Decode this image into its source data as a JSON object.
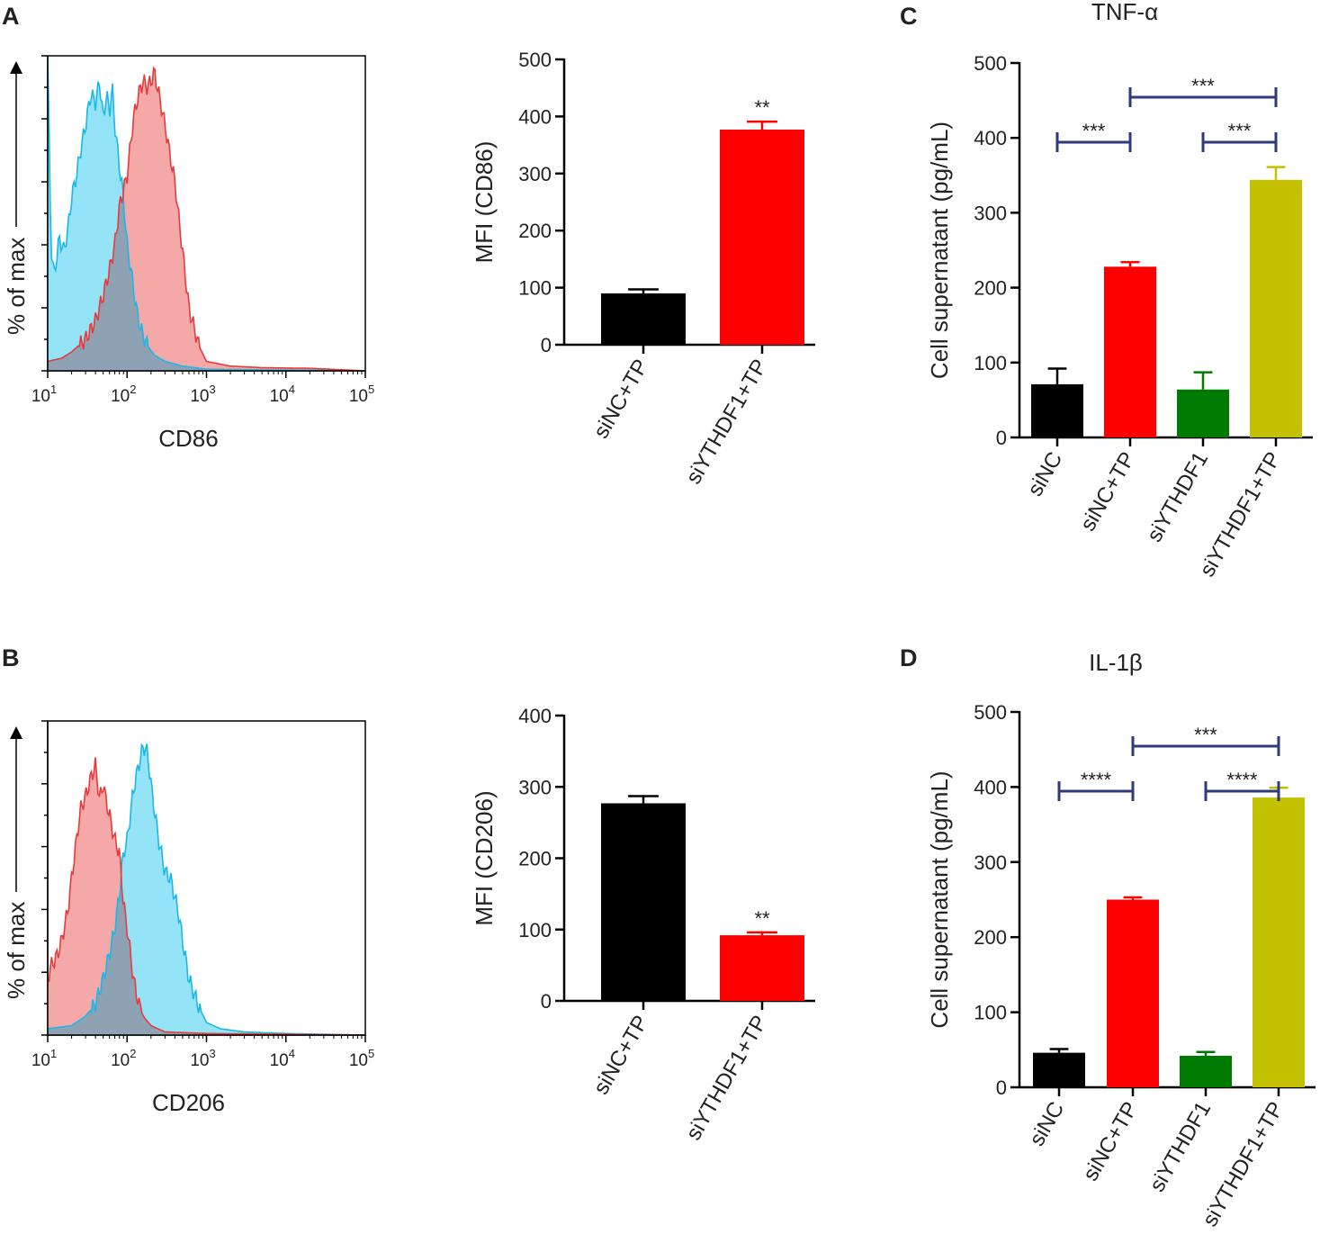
{
  "panels": {
    "A": "A",
    "B": "B",
    "C": "C",
    "D": "D"
  },
  "colors": {
    "black": "#000000",
    "red": "#ff0000",
    "green": "#007a00",
    "olive": "#c3c000",
    "bracket": "#2e3a7a",
    "hist_blue_fill": "#8fe1f5",
    "hist_blue_line": "#1ab8e8",
    "hist_red_fill": "#f4a3a3",
    "hist_red_line": "#e63b3b",
    "hist_overlap": "#8fa2b4"
  },
  "chart_data": [
    {
      "id": "hist_cd86",
      "panel": "A",
      "type": "area",
      "xlabel": "CD86",
      "ylabel": "% of max",
      "xscale": "log",
      "xlim": [
        10,
        100000
      ],
      "x_ticks": [
        {
          "base": "10",
          "exp": "1"
        },
        {
          "base": "10",
          "exp": "2"
        },
        {
          "base": "10",
          "exp": "3"
        },
        {
          "base": "10",
          "exp": "4"
        },
        {
          "base": "10",
          "exp": "5"
        }
      ],
      "series": [
        {
          "name": "siNC+TP",
          "color": "blue",
          "x": [
            10,
            11,
            12,
            14,
            16,
            18,
            20,
            23,
            26,
            30,
            35,
            40,
            45,
            50,
            55,
            60,
            65,
            70,
            80,
            90,
            100,
            115,
            130,
            150,
            180,
            220,
            300,
            500,
            1000,
            100000
          ],
          "y": [
            100,
            40,
            30,
            42,
            38,
            45,
            55,
            62,
            70,
            78,
            88,
            85,
            92,
            80,
            88,
            82,
            90,
            78,
            65,
            55,
            40,
            30,
            20,
            13,
            8,
            5,
            3,
            1.5,
            0.5,
            0
          ]
        },
        {
          "name": "siYTHDF1+TP",
          "color": "red",
          "x": [
            10,
            15,
            20,
            30,
            40,
            50,
            60,
            70,
            80,
            100,
            120,
            140,
            160,
            180,
            200,
            220,
            250,
            280,
            300,
            350,
            400,
            450,
            500,
            600,
            800,
            1000,
            2000,
            5000,
            20000,
            100000
          ],
          "y": [
            3,
            4,
            6,
            10,
            16,
            24,
            32,
            40,
            52,
            62,
            80,
            88,
            92,
            90,
            92,
            95,
            88,
            82,
            78,
            68,
            60,
            48,
            38,
            20,
            8,
            3,
            1.5,
            1,
            0.8,
            0
          ]
        }
      ]
    },
    {
      "id": "bar_cd86",
      "panel": "A",
      "type": "bar",
      "ylabel": "MFI (CD86)",
      "ylim": [
        0,
        500
      ],
      "yticks": [
        0,
        100,
        200,
        300,
        400,
        500
      ],
      "categories": [
        "siNC+TP",
        "siYTHDF1+TP"
      ],
      "values": [
        90,
        377
      ],
      "errors": [
        7,
        14
      ],
      "colors": [
        "black",
        "red"
      ],
      "annotations": [
        {
          "index": 1,
          "text": "**"
        }
      ]
    },
    {
      "id": "tnf",
      "panel": "C",
      "type": "bar",
      "title": "TNF-α",
      "ylabel": "Cell supernatant  (pg/mL)",
      "ylim": [
        0,
        500
      ],
      "yticks": [
        0,
        100,
        200,
        300,
        400,
        500
      ],
      "categories": [
        "siNC",
        "siNC+TP",
        "siYTHDF1",
        "siYTHDF1+TP"
      ],
      "values": [
        71,
        228,
        64,
        344
      ],
      "errors": [
        21,
        6,
        23,
        17
      ],
      "colors": [
        "black",
        "red",
        "green",
        "olive"
      ],
      "comparisons": [
        {
          "from": 0,
          "to": 1,
          "text": "***",
          "level": 1
        },
        {
          "from": 2,
          "to": 3,
          "text": "***",
          "level": 1
        },
        {
          "from": 1,
          "to": 3,
          "text": "***",
          "level": 2
        }
      ]
    },
    {
      "id": "hist_cd206",
      "panel": "B",
      "type": "area",
      "xlabel": "CD206",
      "ylabel": "% of max",
      "xscale": "log",
      "xlim": [
        10,
        100000
      ],
      "x_ticks": [
        {
          "base": "10",
          "exp": "1"
        },
        {
          "base": "10",
          "exp": "2"
        },
        {
          "base": "10",
          "exp": "3"
        },
        {
          "base": "10",
          "exp": "4"
        },
        {
          "base": "10",
          "exp": "5"
        }
      ],
      "series": [
        {
          "name": "siNC+TP",
          "color": "blue",
          "x": [
            10,
            20,
            30,
            40,
            50,
            60,
            70,
            80,
            90,
            100,
            120,
            140,
            160,
            180,
            200,
            220,
            250,
            300,
            350,
            400,
            450,
            500,
            600,
            800,
            1000,
            1500,
            3000,
            10000,
            100000
          ],
          "y": [
            2,
            3,
            6,
            10,
            18,
            26,
            34,
            45,
            58,
            62,
            78,
            86,
            92,
            90,
            80,
            72,
            62,
            52,
            50,
            44,
            38,
            30,
            18,
            9,
            4,
            2,
            1,
            0.5,
            0
          ]
        },
        {
          "name": "siYTHDF1+TP",
          "color": "red",
          "x": [
            10,
            11,
            13,
            15,
            18,
            20,
            23,
            26,
            30,
            35,
            40,
            45,
            50,
            55,
            60,
            70,
            80,
            90,
            100,
            110,
            120,
            140,
            160,
            200,
            300,
            1000,
            100000
          ],
          "y": [
            18,
            22,
            25,
            30,
            40,
            50,
            62,
            72,
            76,
            82,
            86,
            75,
            80,
            74,
            70,
            62,
            58,
            42,
            34,
            26,
            18,
            10,
            6,
            3,
            1,
            0.5,
            0
          ]
        }
      ]
    },
    {
      "id": "bar_cd206",
      "panel": "B",
      "type": "bar",
      "ylabel": "MFI (CD206)",
      "ylim": [
        0,
        400
      ],
      "yticks": [
        0,
        100,
        200,
        300,
        400
      ],
      "categories": [
        "siNC+TP",
        "siYTHDF1+TP"
      ],
      "values": [
        277,
        92
      ],
      "errors": [
        10,
        4
      ],
      "colors": [
        "black",
        "red"
      ],
      "annotations": [
        {
          "index": 1,
          "text": "**"
        }
      ]
    },
    {
      "id": "il1b",
      "panel": "D",
      "type": "bar",
      "title": "IL-1β",
      "ylabel": "Cell supernatant  (pg/mL)",
      "ylim": [
        0,
        500
      ],
      "yticks": [
        0,
        100,
        200,
        300,
        400,
        500
      ],
      "categories": [
        "siNC",
        "siNC+TP",
        "siYTHDF1",
        "siYTHDF1+TP"
      ],
      "values": [
        46,
        250,
        42,
        386
      ],
      "errors": [
        5,
        3,
        5,
        13
      ],
      "colors": [
        "black",
        "red",
        "green",
        "olive"
      ],
      "comparisons": [
        {
          "from": 0,
          "to": 1,
          "text": "****",
          "level": 1
        },
        {
          "from": 2,
          "to": 3,
          "text": "****",
          "level": 1
        },
        {
          "from": 1,
          "to": 3,
          "text": "***",
          "level": 2
        }
      ]
    }
  ]
}
